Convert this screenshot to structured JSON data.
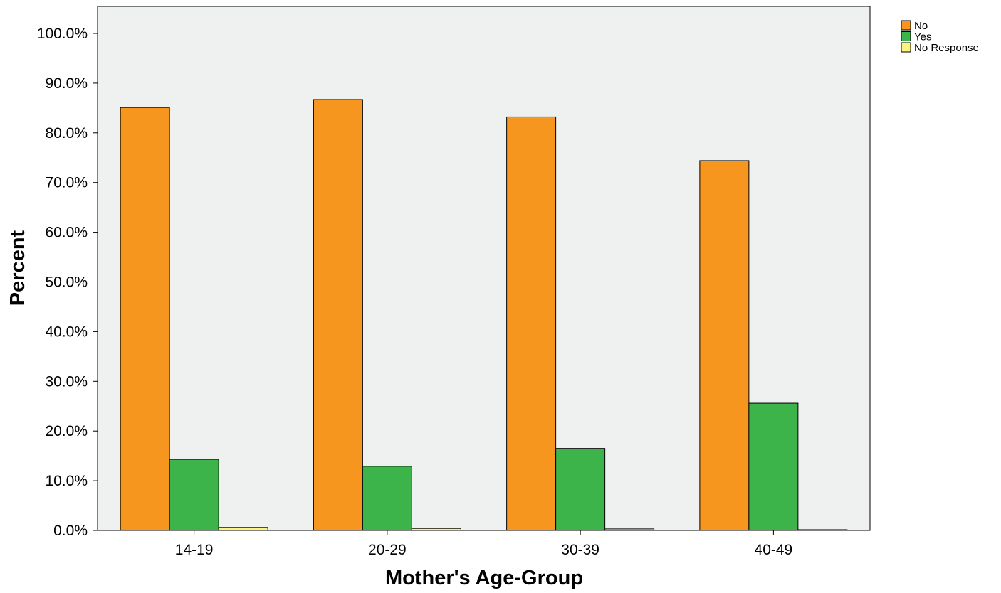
{
  "chart_data": {
    "type": "bar",
    "title": "",
    "xlabel": "Mother's Age-Group",
    "ylabel": "Percent",
    "categories": [
      "14-19",
      "20-29",
      "30-39",
      "40-49"
    ],
    "series": [
      {
        "name": "No",
        "color": "#f7961e",
        "values": [
          85.1,
          86.7,
          83.2,
          74.4
        ]
      },
      {
        "name": "Yes",
        "color": "#3cb44a",
        "values": [
          14.3,
          12.9,
          16.5,
          25.6
        ]
      },
      {
        "name": "No Response",
        "color": "#fbf580",
        "values": [
          0.6,
          0.4,
          0.3,
          0.0
        ]
      }
    ],
    "ylim": [
      0,
      100
    ],
    "yticks": [
      0,
      10,
      20,
      30,
      40,
      50,
      60,
      70,
      80,
      90,
      100
    ],
    "ytick_labels": [
      "0.0%",
      "10.0%",
      "20.0%",
      "30.0%",
      "40.0%",
      "50.0%",
      "60.0%",
      "70.0%",
      "80.0%",
      "90.0%",
      "100.0%"
    ],
    "grid": false,
    "legend_position": "top-right, outside plot",
    "plot_background": "#eff0f0",
    "bar_outline": "#000000"
  }
}
